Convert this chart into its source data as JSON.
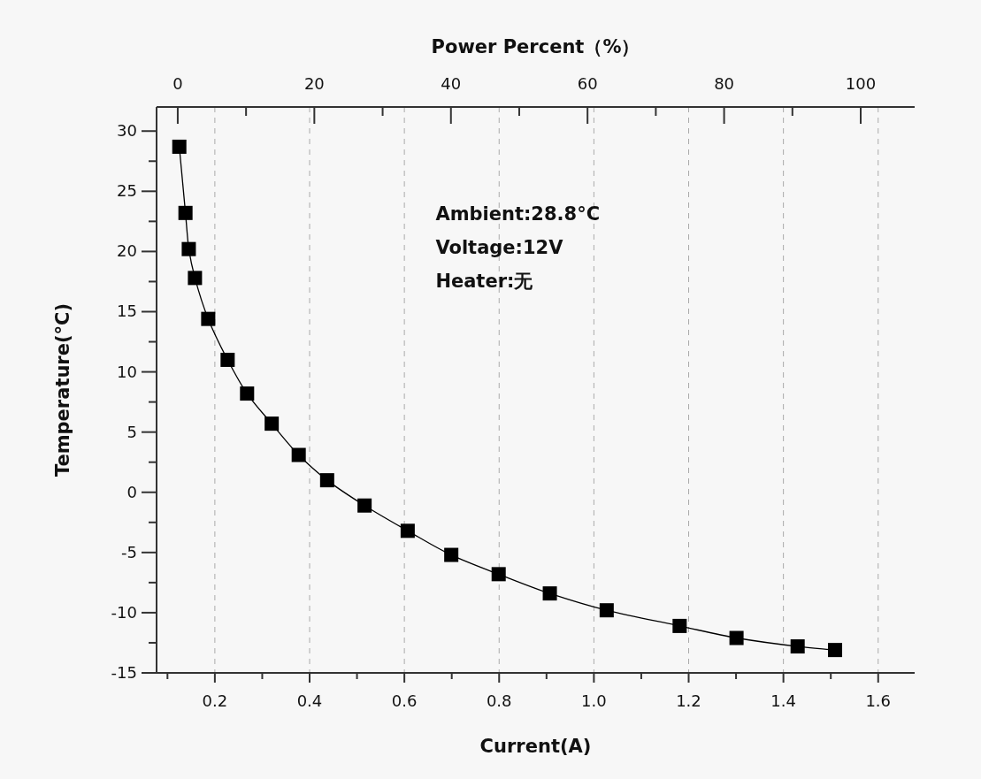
{
  "chart_data": {
    "type": "line",
    "xlabel": "Current(A)",
    "ylabel": "Temperature(°C)",
    "x2label": "Power Percent（%）",
    "x": [
      0.125,
      0.138,
      0.145,
      0.158,
      0.186,
      0.227,
      0.268,
      0.32,
      0.377,
      0.437,
      0.516,
      0.607,
      0.699,
      0.799,
      0.907,
      1.027,
      1.181,
      1.301,
      1.43,
      1.509
    ],
    "series": [
      {
        "color": "#000000",
        "values": [
          28.7,
          23.2,
          20.2,
          17.8,
          14.4,
          11.0,
          8.2,
          5.7,
          3.1,
          1.0,
          -1.1,
          -3.2,
          -5.2,
          -6.8,
          -8.4,
          -9.8,
          -11.1,
          -12.1,
          -12.8,
          -13.1
        ]
      }
    ],
    "marker": "square",
    "grid": "x",
    "xlim": [
      0.077,
      1.677
    ],
    "xticks": [
      {
        "value": 0.1,
        "label": null
      },
      0.2,
      {
        "value": 0.3,
        "label": null
      },
      0.4,
      {
        "value": 0.5,
        "label": null
      },
      0.6,
      {
        "value": 0.7,
        "label": null
      },
      0.8,
      {
        "value": 0.9,
        "label": null
      },
      {
        "value": 1.0,
        "label": "1.0"
      },
      {
        "value": 1.1,
        "label": null
      },
      1.2,
      {
        "value": 1.3,
        "label": null
      },
      1.4,
      {
        "value": 1.5,
        "label": null
      },
      1.6
    ],
    "x2lim": [
      -3.1,
      107.9
    ],
    "x2ticks": [
      0,
      {
        "value": 10,
        "label": null
      },
      20,
      {
        "value": 30,
        "label": null
      },
      40,
      {
        "value": 50,
        "label": null
      },
      60,
      {
        "value": 70,
        "label": null
      },
      80,
      {
        "value": 90,
        "label": null
      },
      100
    ],
    "ylim": [
      -15,
      32
    ],
    "yticks": [
      -15,
      {
        "value": -12.5,
        "label": null
      },
      -10,
      {
        "value": -7.5,
        "label": null
      },
      -5,
      {
        "value": -2.5,
        "label": null
      },
      0,
      {
        "value": 2.5,
        "label": null
      },
      5,
      {
        "value": 7.5,
        "label": null
      },
      10,
      {
        "value": 12.5,
        "label": null
      },
      15,
      {
        "value": 17.5,
        "label": null
      },
      20,
      {
        "value": 22.5,
        "label": null
      },
      25,
      {
        "value": 27.5,
        "label": null
      },
      30
    ],
    "annotations": [
      "Ambient:28.8°C",
      "Voltage:12V",
      "Heater:无"
    ]
  }
}
